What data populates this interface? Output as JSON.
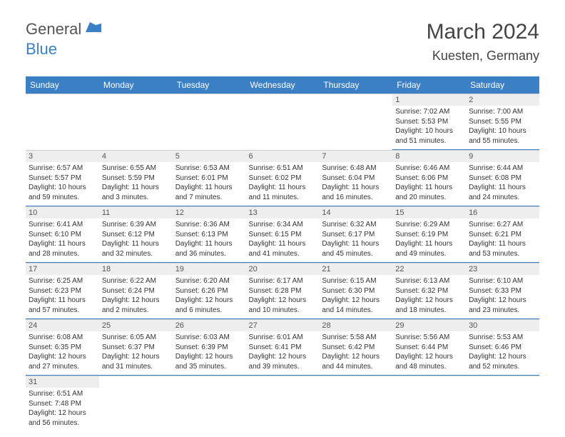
{
  "logo": {
    "text1": "General",
    "text2": "Blue"
  },
  "title": "March 2024",
  "location": "Kuesten, Germany",
  "colors": {
    "header_bg": "#3b7fc4",
    "header_text": "#ffffff",
    "daynum_bg": "#eeeeee",
    "underline": "#3b7fc4",
    "body_text": "#333333",
    "title_text": "#444444"
  },
  "weekdays": [
    "Sunday",
    "Monday",
    "Tuesday",
    "Wednesday",
    "Thursday",
    "Friday",
    "Saturday"
  ],
  "weeks": [
    [
      null,
      null,
      null,
      null,
      null,
      {
        "day": "1",
        "sunrise": "Sunrise: 7:02 AM",
        "sunset": "Sunset: 5:53 PM",
        "daylight1": "Daylight: 10 hours",
        "daylight2": "and 51 minutes."
      },
      {
        "day": "2",
        "sunrise": "Sunrise: 7:00 AM",
        "sunset": "Sunset: 5:55 PM",
        "daylight1": "Daylight: 10 hours",
        "daylight2": "and 55 minutes."
      }
    ],
    [
      {
        "day": "3",
        "sunrise": "Sunrise: 6:57 AM",
        "sunset": "Sunset: 5:57 PM",
        "daylight1": "Daylight: 10 hours",
        "daylight2": "and 59 minutes."
      },
      {
        "day": "4",
        "sunrise": "Sunrise: 6:55 AM",
        "sunset": "Sunset: 5:59 PM",
        "daylight1": "Daylight: 11 hours",
        "daylight2": "and 3 minutes."
      },
      {
        "day": "5",
        "sunrise": "Sunrise: 6:53 AM",
        "sunset": "Sunset: 6:01 PM",
        "daylight1": "Daylight: 11 hours",
        "daylight2": "and 7 minutes."
      },
      {
        "day": "6",
        "sunrise": "Sunrise: 6:51 AM",
        "sunset": "Sunset: 6:02 PM",
        "daylight1": "Daylight: 11 hours",
        "daylight2": "and 11 minutes."
      },
      {
        "day": "7",
        "sunrise": "Sunrise: 6:48 AM",
        "sunset": "Sunset: 6:04 PM",
        "daylight1": "Daylight: 11 hours",
        "daylight2": "and 16 minutes."
      },
      {
        "day": "8",
        "sunrise": "Sunrise: 6:46 AM",
        "sunset": "Sunset: 6:06 PM",
        "daylight1": "Daylight: 11 hours",
        "daylight2": "and 20 minutes."
      },
      {
        "day": "9",
        "sunrise": "Sunrise: 6:44 AM",
        "sunset": "Sunset: 6:08 PM",
        "daylight1": "Daylight: 11 hours",
        "daylight2": "and 24 minutes."
      }
    ],
    [
      {
        "day": "10",
        "sunrise": "Sunrise: 6:41 AM",
        "sunset": "Sunset: 6:10 PM",
        "daylight1": "Daylight: 11 hours",
        "daylight2": "and 28 minutes."
      },
      {
        "day": "11",
        "sunrise": "Sunrise: 6:39 AM",
        "sunset": "Sunset: 6:12 PM",
        "daylight1": "Daylight: 11 hours",
        "daylight2": "and 32 minutes."
      },
      {
        "day": "12",
        "sunrise": "Sunrise: 6:36 AM",
        "sunset": "Sunset: 6:13 PM",
        "daylight1": "Daylight: 11 hours",
        "daylight2": "and 36 minutes."
      },
      {
        "day": "13",
        "sunrise": "Sunrise: 6:34 AM",
        "sunset": "Sunset: 6:15 PM",
        "daylight1": "Daylight: 11 hours",
        "daylight2": "and 41 minutes."
      },
      {
        "day": "14",
        "sunrise": "Sunrise: 6:32 AM",
        "sunset": "Sunset: 6:17 PM",
        "daylight1": "Daylight: 11 hours",
        "daylight2": "and 45 minutes."
      },
      {
        "day": "15",
        "sunrise": "Sunrise: 6:29 AM",
        "sunset": "Sunset: 6:19 PM",
        "daylight1": "Daylight: 11 hours",
        "daylight2": "and 49 minutes."
      },
      {
        "day": "16",
        "sunrise": "Sunrise: 6:27 AM",
        "sunset": "Sunset: 6:21 PM",
        "daylight1": "Daylight: 11 hours",
        "daylight2": "and 53 minutes."
      }
    ],
    [
      {
        "day": "17",
        "sunrise": "Sunrise: 6:25 AM",
        "sunset": "Sunset: 6:23 PM",
        "daylight1": "Daylight: 11 hours",
        "daylight2": "and 57 minutes."
      },
      {
        "day": "18",
        "sunrise": "Sunrise: 6:22 AM",
        "sunset": "Sunset: 6:24 PM",
        "daylight1": "Daylight: 12 hours",
        "daylight2": "and 2 minutes."
      },
      {
        "day": "19",
        "sunrise": "Sunrise: 6:20 AM",
        "sunset": "Sunset: 6:26 PM",
        "daylight1": "Daylight: 12 hours",
        "daylight2": "and 6 minutes."
      },
      {
        "day": "20",
        "sunrise": "Sunrise: 6:17 AM",
        "sunset": "Sunset: 6:28 PM",
        "daylight1": "Daylight: 12 hours",
        "daylight2": "and 10 minutes."
      },
      {
        "day": "21",
        "sunrise": "Sunrise: 6:15 AM",
        "sunset": "Sunset: 6:30 PM",
        "daylight1": "Daylight: 12 hours",
        "daylight2": "and 14 minutes."
      },
      {
        "day": "22",
        "sunrise": "Sunrise: 6:13 AM",
        "sunset": "Sunset: 6:32 PM",
        "daylight1": "Daylight: 12 hours",
        "daylight2": "and 18 minutes."
      },
      {
        "day": "23",
        "sunrise": "Sunrise: 6:10 AM",
        "sunset": "Sunset: 6:33 PM",
        "daylight1": "Daylight: 12 hours",
        "daylight2": "and 23 minutes."
      }
    ],
    [
      {
        "day": "24",
        "sunrise": "Sunrise: 6:08 AM",
        "sunset": "Sunset: 6:35 PM",
        "daylight1": "Daylight: 12 hours",
        "daylight2": "and 27 minutes."
      },
      {
        "day": "25",
        "sunrise": "Sunrise: 6:05 AM",
        "sunset": "Sunset: 6:37 PM",
        "daylight1": "Daylight: 12 hours",
        "daylight2": "and 31 minutes."
      },
      {
        "day": "26",
        "sunrise": "Sunrise: 6:03 AM",
        "sunset": "Sunset: 6:39 PM",
        "daylight1": "Daylight: 12 hours",
        "daylight2": "and 35 minutes."
      },
      {
        "day": "27",
        "sunrise": "Sunrise: 6:01 AM",
        "sunset": "Sunset: 6:41 PM",
        "daylight1": "Daylight: 12 hours",
        "daylight2": "and 39 minutes."
      },
      {
        "day": "28",
        "sunrise": "Sunrise: 5:58 AM",
        "sunset": "Sunset: 6:42 PM",
        "daylight1": "Daylight: 12 hours",
        "daylight2": "and 44 minutes."
      },
      {
        "day": "29",
        "sunrise": "Sunrise: 5:56 AM",
        "sunset": "Sunset: 6:44 PM",
        "daylight1": "Daylight: 12 hours",
        "daylight2": "and 48 minutes."
      },
      {
        "day": "30",
        "sunrise": "Sunrise: 5:53 AM",
        "sunset": "Sunset: 6:46 PM",
        "daylight1": "Daylight: 12 hours",
        "daylight2": "and 52 minutes."
      }
    ],
    [
      {
        "day": "31",
        "sunrise": "Sunrise: 6:51 AM",
        "sunset": "Sunset: 7:48 PM",
        "daylight1": "Daylight: 12 hours",
        "daylight2": "and 56 minutes."
      },
      null,
      null,
      null,
      null,
      null,
      null
    ]
  ]
}
